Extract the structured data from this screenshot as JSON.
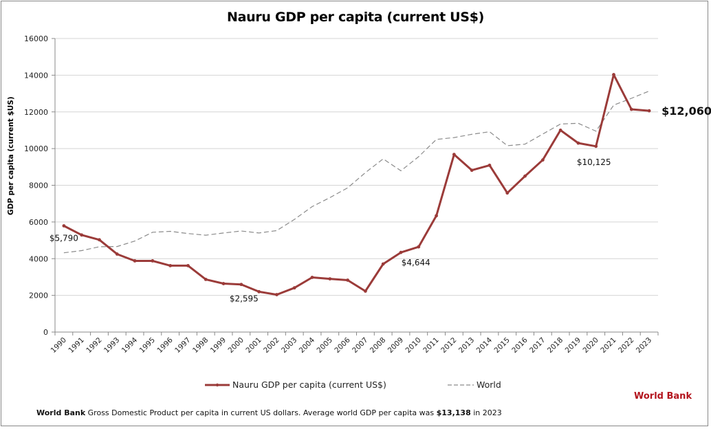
{
  "chart_data": {
    "type": "line",
    "title": "Nauru GDP per capita (current US$)",
    "xlabel": "",
    "ylabel": "GDP per capita (current $US)",
    "ylim": [
      0,
      16000
    ],
    "yticks": [
      0,
      2000,
      4000,
      6000,
      8000,
      10000,
      12000,
      14000,
      16000
    ],
    "grid": true,
    "legend_position": "bottom",
    "x": [
      "1990",
      "1991",
      "1992",
      "1993",
      "1994",
      "1995",
      "1996",
      "1997",
      "1998",
      "1999",
      "2000",
      "2001",
      "2002",
      "2003",
      "2004",
      "2005",
      "2006",
      "2007",
      "2008",
      "2009",
      "2010",
      "2011",
      "2012",
      "2013",
      "2014",
      "2015",
      "2016",
      "2017",
      "2018",
      "2019",
      "2020",
      "2021",
      "2022",
      "2023"
    ],
    "series": [
      {
        "name": "Nauru GDP per capita (current US$)",
        "color": "#9b3b39",
        "style": "solid-markers",
        "values": [
          5790,
          5290,
          5030,
          4250,
          3880,
          3880,
          3620,
          3620,
          2870,
          2640,
          2595,
          2200,
          2040,
          2410,
          2980,
          2900,
          2830,
          2230,
          3710,
          4340,
          4644,
          6340,
          9680,
          8820,
          9090,
          7580,
          8500,
          9380,
          11000,
          10300,
          10125,
          14030,
          12140,
          12060
        ]
      },
      {
        "name": "World",
        "color": "#8a8a8a",
        "style": "dashed",
        "values": [
          4320,
          4440,
          4650,
          4660,
          4960,
          5440,
          5490,
          5370,
          5280,
          5400,
          5510,
          5400,
          5530,
          6140,
          6840,
          7330,
          7860,
          8690,
          9440,
          8790,
          9560,
          10500,
          10600,
          10780,
          10920,
          10160,
          10240,
          10790,
          11340,
          11380,
          10950,
          12370,
          12740,
          13138
        ]
      }
    ],
    "annotations": [
      {
        "x": "1990",
        "text": "$5,790"
      },
      {
        "x": "2000",
        "text": "$2,595"
      },
      {
        "x": "2010",
        "text": "$4,644"
      },
      {
        "x": "2020",
        "text": "$10,125"
      },
      {
        "x": "2023",
        "text": "$12,060",
        "emphasis": "bold-large"
      }
    ]
  },
  "legend": {
    "nauru_label": "Nauru GDP per capita (current US$)",
    "world_label": "World"
  },
  "footer": {
    "source_bold": "World Bank",
    "description": " Gross Domestic Product per capita in current US dollars.   Average world GDP per capita was ",
    "world_value": "$13,138",
    "suffix": " in 2023"
  },
  "brand": "World Bank"
}
